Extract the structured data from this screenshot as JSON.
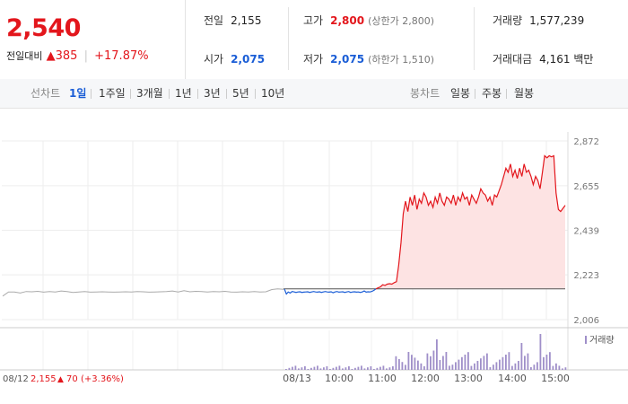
{
  "summary": {
    "price": "2,540",
    "change_label": "전일대비",
    "change_icon": "up-triangle-icon",
    "change_value": "385",
    "change_pct": "+17.87%"
  },
  "stats": {
    "prev_close": {
      "label": "전일",
      "value": "2,155"
    },
    "high": {
      "label": "고가",
      "value": "2,800",
      "sub": "(상한가 2,800)"
    },
    "volume": {
      "label": "거래량",
      "value": "1,577,239"
    },
    "open": {
      "label": "시가",
      "value": "2,075"
    },
    "low": {
      "label": "저가",
      "value": "2,075",
      "sub": "(하한가 1,510)"
    },
    "amount": {
      "label": "거래대금",
      "value": "4,161 백만"
    }
  },
  "tabs": {
    "line_title": "선차트",
    "line_periods": [
      "1일",
      "1주일",
      "3개월",
      "1년",
      "3년",
      "5년",
      "10년"
    ],
    "active": "1일",
    "candle_title": "봉차트",
    "candle_periods": [
      "일봉",
      "주봉",
      "월봉"
    ]
  },
  "colors": {
    "up": "#e3161c",
    "down": "#1a5dd6",
    "prev_line": "#aaaaaa",
    "fill": "#fde3e3",
    "volume": "#9f8fc9"
  },
  "chart_data": {
    "type": "line",
    "y_ticks": [
      "2,872",
      "2,655",
      "2,439",
      "2,223",
      "2,006"
    ],
    "ylim": [
      2006,
      2872
    ],
    "x_ticks": [
      "08/12",
      "08/13",
      "10:00",
      "11:00",
      "12:00",
      "13:00",
      "14:00",
      "15:00"
    ],
    "volume_legend": "거래량",
    "prev_day_footer": {
      "date": "08/12",
      "price": "2,155",
      "icon": "up-triangle-icon",
      "change": "70",
      "pct": "(+3.36%)"
    },
    "baseline": 2155,
    "series": [
      {
        "values": [
          2120,
          2140,
          2140,
          2135,
          2142,
          2141,
          2143,
          2139,
          2142,
          2140,
          2145,
          2142,
          2138,
          2140,
          2142,
          2139,
          2140,
          2141,
          2140,
          2139,
          2140,
          2141,
          2140,
          2142,
          2141,
          2139,
          2140,
          2141,
          2142,
          2145,
          2140,
          2146,
          2141,
          2143,
          2142,
          2140,
          2142,
          2141,
          2143,
          2140,
          2139,
          2141,
          2140,
          2142,
          2140,
          2141,
          2152,
          2155,
          2153
        ]
      },
      {
        "values": [
          2155,
          2130,
          2140,
          2135,
          2142,
          2140,
          2138,
          2140,
          2141,
          2138,
          2139,
          2140,
          2141,
          2138,
          2140,
          2142,
          2140,
          2139,
          2141,
          2138,
          2140,
          2142,
          2140,
          2139,
          2141,
          2136,
          2140,
          2142,
          2139,
          2140,
          2141,
          2138,
          2140,
          2142,
          2138,
          2140,
          2141,
          2139,
          2140,
          2138,
          2140,
          2145,
          2139,
          2141,
          2140,
          2143,
          2148,
          2155
        ]
      },
      {
        "values": [
          2155,
          2160,
          2165,
          2175,
          2172,
          2178,
          2180,
          2178,
          2185,
          2190,
          2270,
          2380,
          2520,
          2580,
          2530,
          2600,
          2560,
          2610,
          2540,
          2590,
          2570,
          2620,
          2600,
          2560,
          2580,
          2550,
          2600,
          2570,
          2620,
          2580,
          2560,
          2600,
          2590,
          2570,
          2610,
          2560,
          2600,
          2580,
          2620,
          2590,
          2600,
          2560,
          2610,
          2590,
          2570,
          2600,
          2640,
          2620,
          2610,
          2580,
          2600,
          2560,
          2610,
          2600,
          2630,
          2660,
          2700,
          2740,
          2720,
          2760,
          2700,
          2730,
          2690,
          2740,
          2700,
          2760,
          2720,
          2730,
          2700,
          2660,
          2700,
          2680,
          2640,
          2720,
          2800,
          2790,
          2800,
          2795,
          2800,
          2620,
          2540,
          2530,
          2545,
          2560
        ]
      }
    ]
  }
}
